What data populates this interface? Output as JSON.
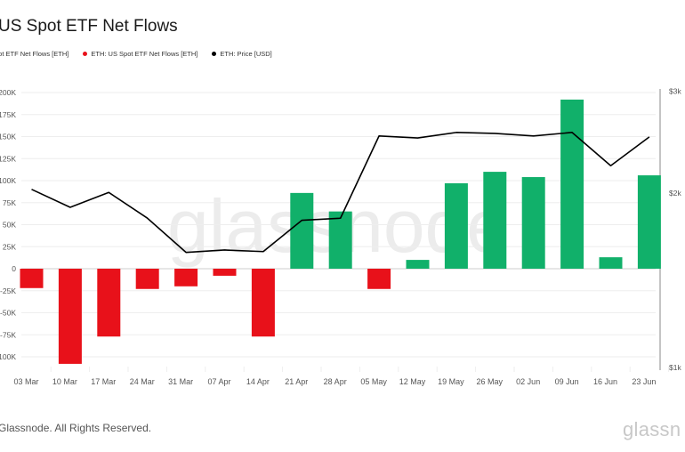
{
  "header": {
    "title": "US Spot ETF Net Flows"
  },
  "legend": [
    {
      "label": "pot ETF Net Flows [ETH]",
      "color": "#11b06a",
      "show_dot": false
    },
    {
      "label": "ETH: US Spot ETF Net Flows [ETH]",
      "color": "#e8111a",
      "show_dot": true
    },
    {
      "label": "ETH: Price [USD]",
      "color": "#000000",
      "show_dot": true
    }
  ],
  "left_axis_labels": [
    "200K",
    "175K",
    "150K",
    "125K",
    "100K",
    "75K",
    "50K",
    "25K",
    "0",
    "-25K",
    "-50K",
    "-75K",
    "-100K"
  ],
  "right_axis_labels": [
    "$3k",
    "$2k",
    "$1k"
  ],
  "watermark": "glassnode",
  "footer": {
    "copyright": "Glassnode. All Rights Reserved.",
    "brand": "glassn"
  },
  "colors": {
    "positive": "#11b06a",
    "negative": "#e8111a",
    "price_line": "#000000",
    "grid": "#eeeeee"
  },
  "chart_data": {
    "type": "bar",
    "title": "US Spot ETF Net Flows",
    "xlabel": "",
    "ylabel": "Net Flows [ETH]",
    "y2label": "Price [USD]",
    "categories": [
      "03 Mar",
      "10 Mar",
      "17 Mar",
      "24 Mar",
      "31 Mar",
      "07 Apr",
      "14 Apr",
      "21 Apr",
      "28 Apr",
      "05 May",
      "12 May",
      "19 May",
      "26 May",
      "02 Jun",
      "09 Jun",
      "16 Jun",
      "23 Jun"
    ],
    "series": [
      {
        "name": "ETH: US Spot ETF Net Flows [ETH]",
        "type": "bar",
        "axis": "left",
        "values": [
          -22000,
          -108000,
          -77000,
          -23000,
          -20000,
          -8000,
          -77000,
          86000,
          65000,
          -23000,
          10000,
          97000,
          110000,
          104000,
          192000,
          13000,
          106000
        ]
      },
      {
        "name": "ETH: Price [USD]",
        "type": "line",
        "axis": "right",
        "scale": "log",
        "values": [
          2030,
          1890,
          2005,
          1810,
          1580,
          1595,
          1585,
          1795,
          1810,
          2510,
          2490,
          2545,
          2535,
          2510,
          2545,
          2230,
          2500
        ]
      }
    ],
    "ylim": [
      -110000,
      200000
    ],
    "y2lim": [
      1000,
      3000
    ],
    "y_ticks": [
      -100000,
      -75000,
      -50000,
      -25000,
      0,
      25000,
      50000,
      75000,
      100000,
      125000,
      150000,
      175000,
      200000
    ],
    "y2_ticks": [
      1000,
      2000,
      3000
    ],
    "grid": true,
    "legend_position": "top-left"
  }
}
